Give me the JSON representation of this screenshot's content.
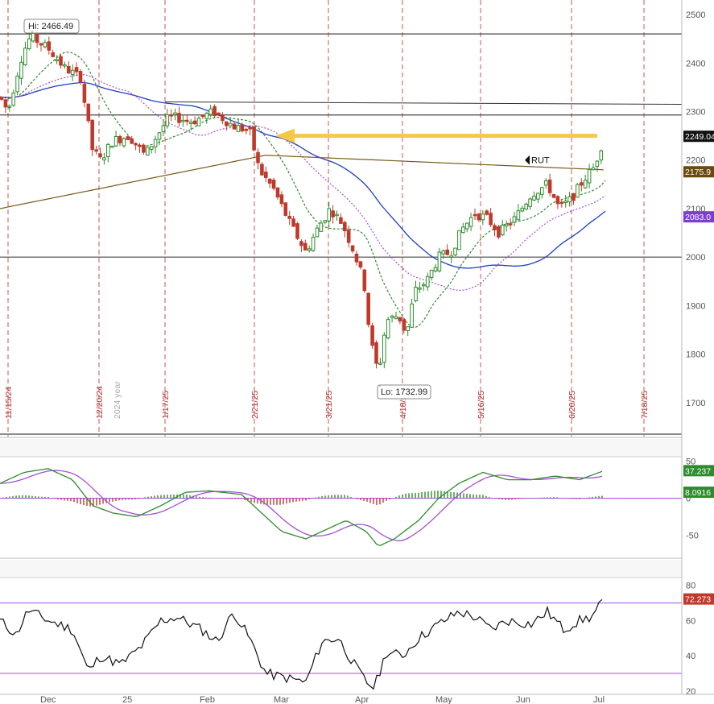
{
  "chart_data": {
    "type": "candlestick",
    "symbol": "RUT",
    "price_panel": {
      "y_ticks": [
        1700,
        1800,
        1900,
        2000,
        2100,
        2200,
        2300,
        2400,
        2500
      ],
      "ylim": [
        1630,
        2530
      ],
      "hi_label": "Hi: 2466.49",
      "lo_label": "Lo: 1732.99",
      "hi_value": 2466.49,
      "lo_value": 1732.99,
      "horizontal_levels": [
        2460,
        2293,
        2000,
        1635
      ],
      "trendline": {
        "from": 2320,
        "to": 2315
      },
      "arrow_level": 2250,
      "date_markers": [
        "11/15/24",
        "12/20/24",
        "1/17/25",
        "2/21/25",
        "3/21/25",
        "4/18/25",
        "5/16/25",
        "6/20/25",
        "7/18/25"
      ],
      "year_marker": "2024 year",
      "price_tags": [
        {
          "text": "2249.04",
          "value": 2249.04,
          "color": "#111111"
        },
        {
          "text": "2175.9",
          "value": 2175.9,
          "color": "#6b4a10"
        },
        {
          "text": "2083.0",
          "value": 2083.0,
          "color": "#7b3fd0"
        }
      ]
    },
    "macd_panel": {
      "y_ticks": [
        -50,
        0,
        50
      ],
      "ylim": [
        -80,
        55
      ],
      "tags": [
        {
          "text": "37.237",
          "value": 37.237,
          "color": "#2e8b2e"
        },
        {
          "text": "8.0916",
          "value": 8.0916,
          "color": "#2e8b2e"
        }
      ]
    },
    "rsi_panel": {
      "y_ticks": [
        20,
        40,
        60,
        80
      ],
      "ylim": [
        19,
        84
      ],
      "levels": [
        70,
        30
      ],
      "tag": {
        "text": "72.273",
        "value": 72.273,
        "color": "#c0392b"
      }
    },
    "x_labels": [
      "Dec",
      "25",
      "Feb",
      "Mar",
      "Apr",
      "May",
      "Jun",
      "Jul"
    ],
    "colors": {
      "up": "#2e8b2e",
      "down": "#c0392b",
      "ma_short": "#2e8b2e",
      "ma_mid": "#1f3fbf",
      "ma_long": "#7a5a1a",
      "ma_purple": "#a64fd6",
      "arrow": "#f6c945",
      "grid_v": "#c0392b"
    }
  }
}
